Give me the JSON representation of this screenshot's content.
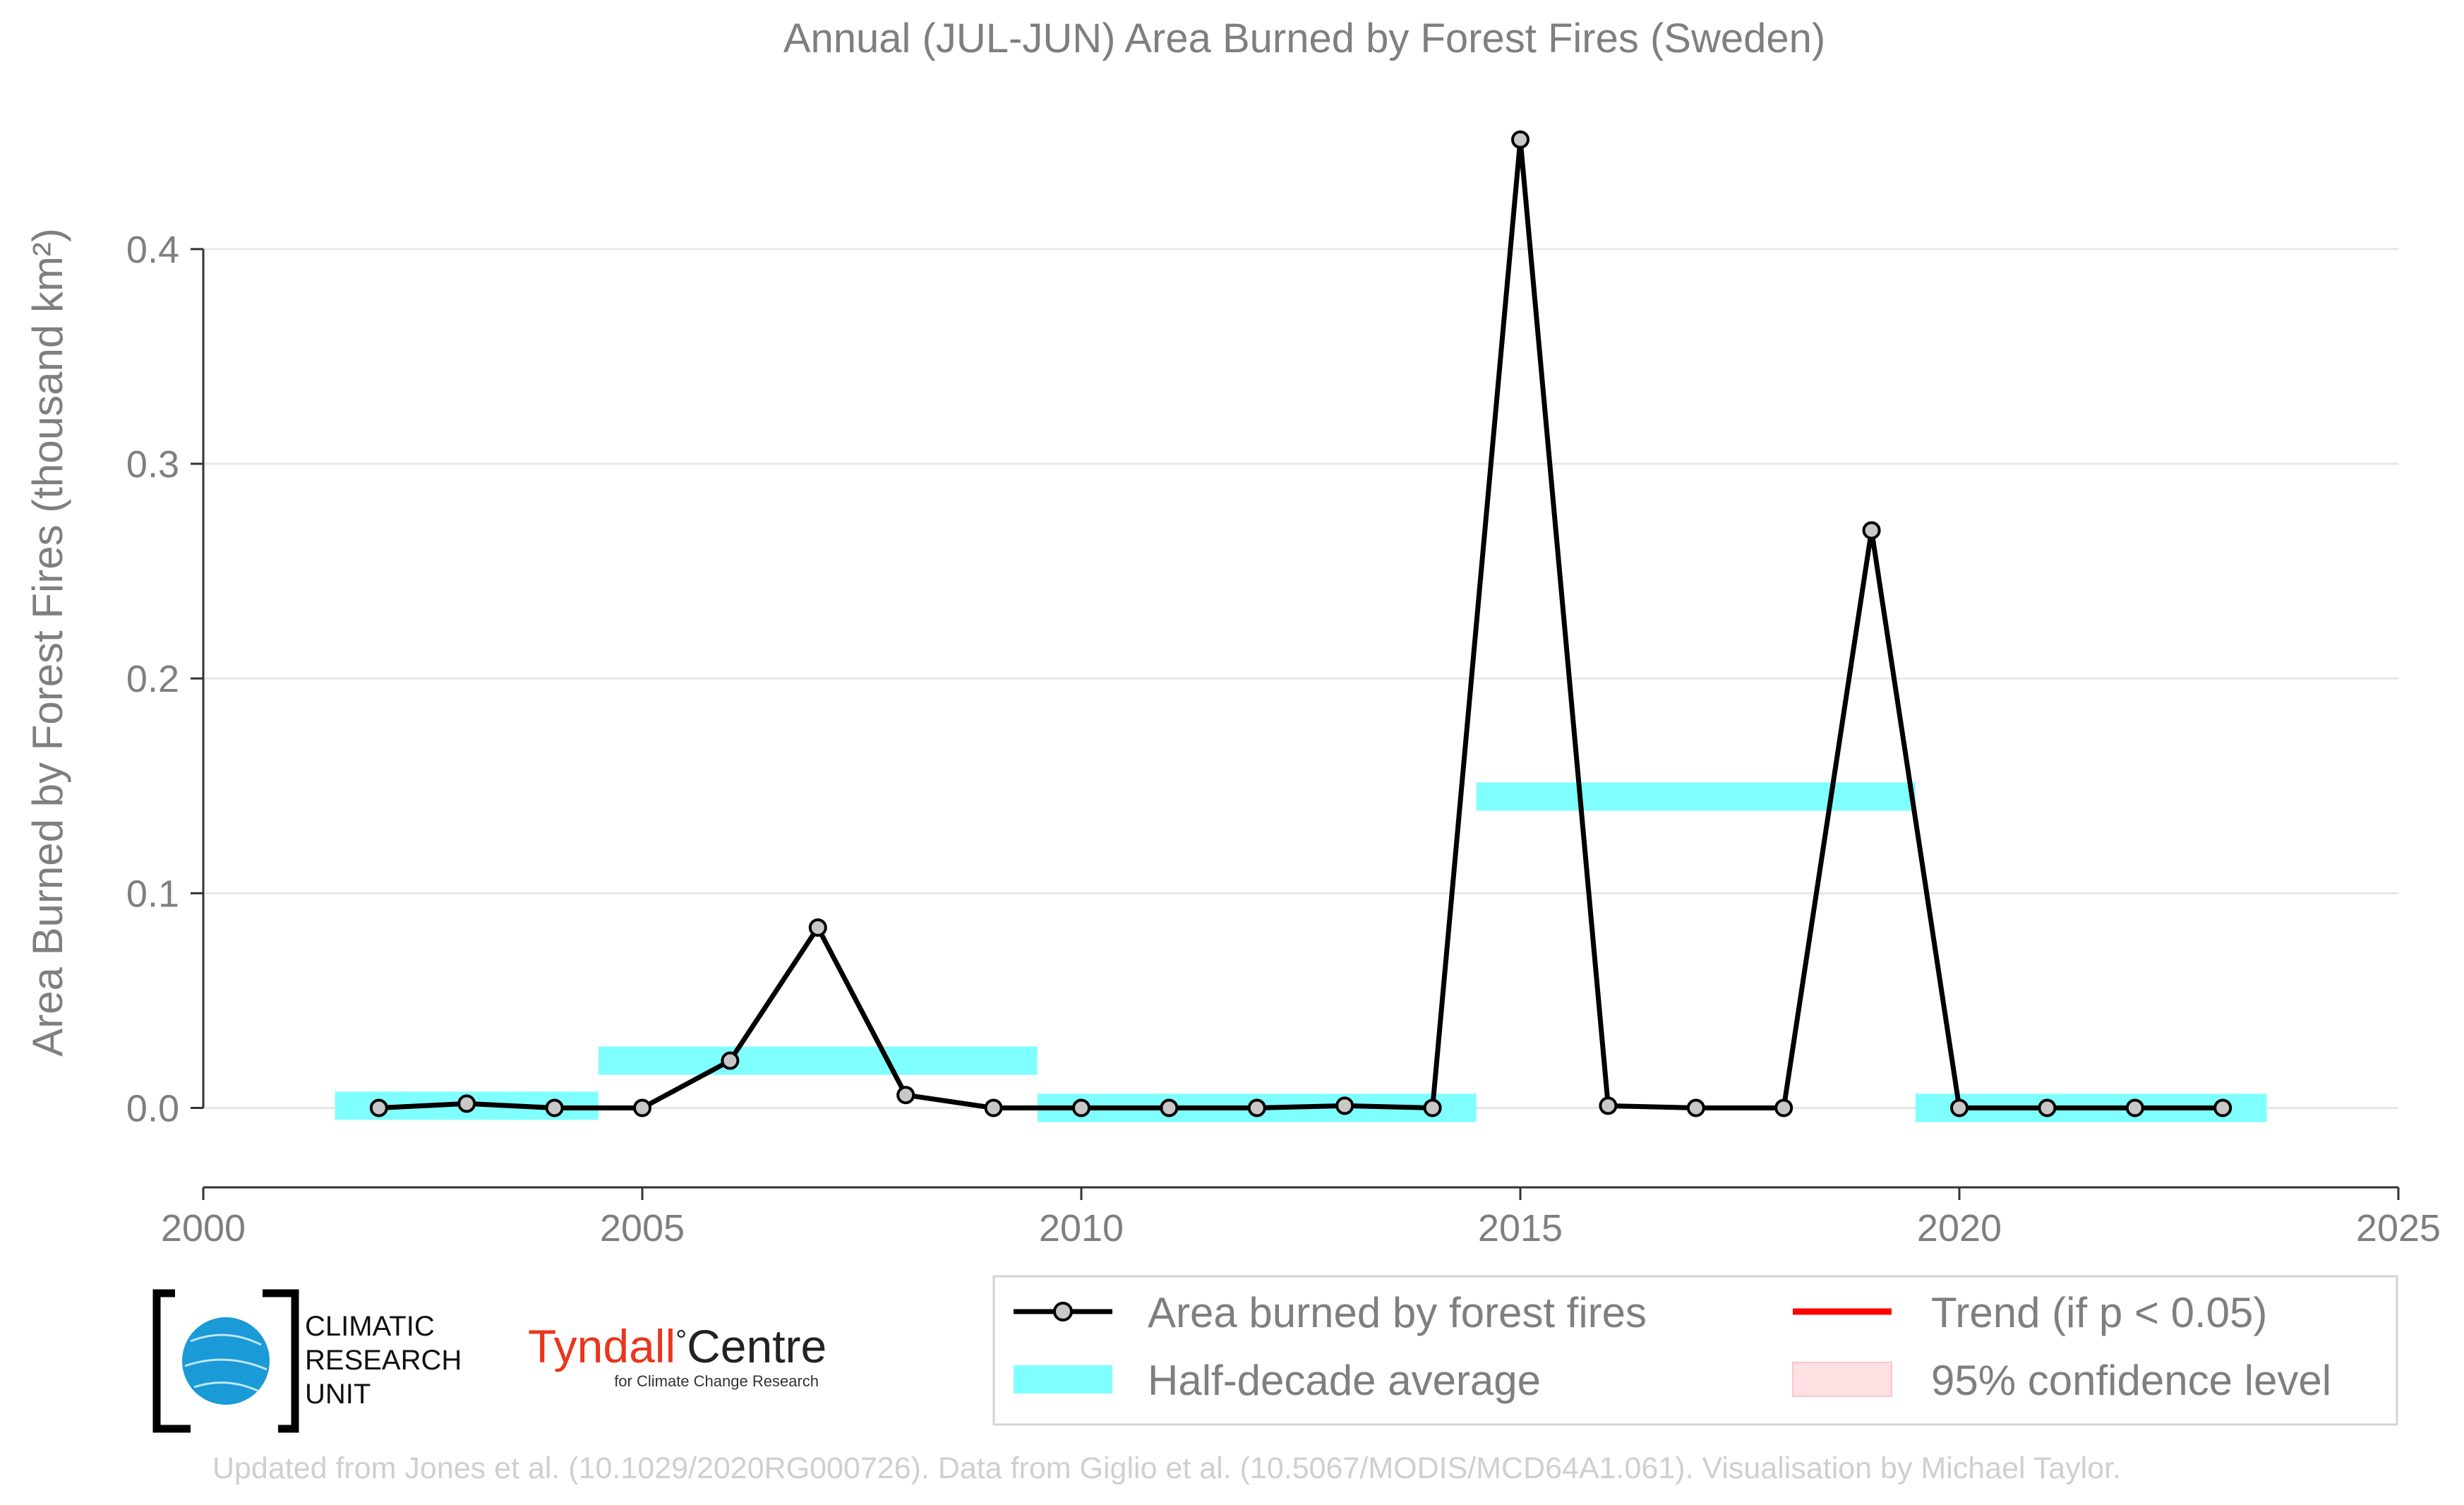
{
  "chart_data": {
    "type": "line",
    "title": "Annual (JUL-JUN) Area Burned by Forest Fires (Sweden)",
    "xlabel": "",
    "ylabel": "Area Burned by Forest Fires (thousand km²)",
    "xlim": [
      2000,
      2025
    ],
    "ylim": [
      -0.037,
      0.47
    ],
    "x_ticks": [
      2000,
      2005,
      2010,
      2015,
      2020,
      2025
    ],
    "y_ticks": [
      0.0,
      0.1,
      0.2,
      0.3,
      0.4
    ],
    "y_tick_labels": [
      "0.0",
      "0.1",
      "0.2",
      "0.3",
      "0.4"
    ],
    "grid": "horizontal",
    "legend_position": "bottom-right",
    "series": [
      {
        "name": "Area burned by forest fires",
        "style": "line-with-markers",
        "x": [
          2002,
          2003,
          2004,
          2005,
          2006,
          2007,
          2008,
          2009,
          2010,
          2011,
          2012,
          2013,
          2014,
          2015,
          2016,
          2017,
          2018,
          2019,
          2020,
          2021,
          2022,
          2023
        ],
        "values": [
          0.0,
          0.002,
          0.0,
          0.0,
          0.022,
          0.084,
          0.006,
          0.0,
          0.0,
          0.0,
          0.0,
          0.001,
          0.0,
          0.451,
          0.001,
          0.0,
          0.0,
          0.269,
          0.0,
          0.0,
          0.0,
          0.0
        ]
      },
      {
        "name": "Half-decade average",
        "style": "bands",
        "segments": [
          {
            "x_start": 2001.5,
            "x_end": 2004.5,
            "value": 0.001
          },
          {
            "x_start": 2004.5,
            "x_end": 2009.5,
            "value": 0.022
          },
          {
            "x_start": 2009.5,
            "x_end": 2014.5,
            "value": 0.0
          },
          {
            "x_start": 2014.5,
            "x_end": 2019.5,
            "value": 0.145
          },
          {
            "x_start": 2019.5,
            "x_end": 2023.5,
            "value": 0.0
          }
        ]
      }
    ],
    "legend": [
      {
        "label": "Area burned by forest fires",
        "kind": "line-marker"
      },
      {
        "label": "Trend (if p < 0.05)",
        "kind": "red-line"
      },
      {
        "label": "Half-decade average",
        "kind": "cyan-band"
      },
      {
        "label": "95% confidence level",
        "kind": "pink-box"
      }
    ],
    "colors": {
      "line": "#000000",
      "marker_fill": "#c8c8c8",
      "band": "#80ffff",
      "trend": "#ff0000",
      "confidence": "#ffe0e3",
      "text": "#7f7f7f"
    }
  },
  "logos": {
    "cru_lines": [
      "CLIMATIC",
      "RESEARCH",
      "UNIT"
    ],
    "tyndall_main": "Tyndall",
    "tyndall_degree": "°",
    "tyndall_centre": "Centre",
    "tyndall_sub": "for Climate Change Research"
  },
  "footer": "Updated from Jones et al. (10.1029/2020RG000726). Data from Giglio et al. (10.5067/MODIS/MCD64A1.061). Visualisation by Michael Taylor."
}
